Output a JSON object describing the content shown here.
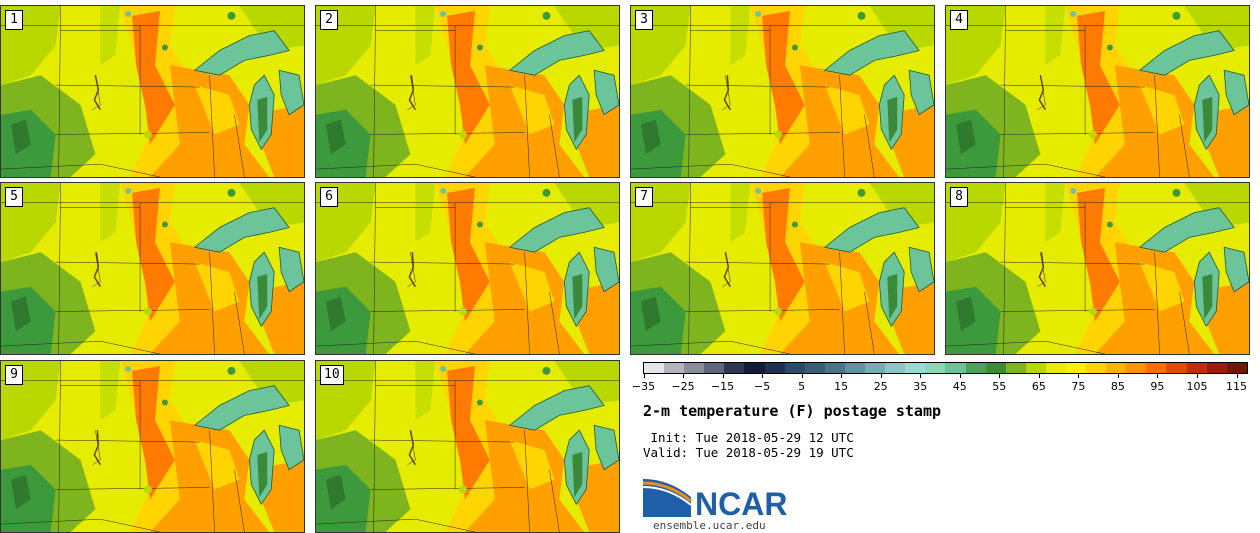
{
  "panels": [
    {
      "label": "1"
    },
    {
      "label": "2"
    },
    {
      "label": "3"
    },
    {
      "label": "4"
    },
    {
      "label": "5"
    },
    {
      "label": "6"
    },
    {
      "label": "7"
    },
    {
      "label": "8"
    },
    {
      "label": "9"
    },
    {
      "label": "10"
    }
  ],
  "colorbar": {
    "colors": [
      "#e6e6ea",
      "#b4b4c0",
      "#8a8e9c",
      "#5e667c",
      "#2e3650",
      "#121c36",
      "#1e3250",
      "#2e4a66",
      "#3c5e78",
      "#4e7488",
      "#62909e",
      "#78aab2",
      "#8cc6c4",
      "#96dcd2",
      "#8cd8b4",
      "#6cc496",
      "#4ea05a",
      "#3c8c32",
      "#7eb41e",
      "#b8d800",
      "#e6ec00",
      "#fff000",
      "#ffd400",
      "#ffb400",
      "#ff9400",
      "#ff6e00",
      "#e44a00",
      "#c02c10",
      "#9c1c10",
      "#701808"
    ],
    "range": [
      -35,
      115
    ],
    "tick_labels": [
      "−35",
      "−25",
      "−15",
      "−5",
      "5",
      "15",
      "25",
      "35",
      "45",
      "55",
      "65",
      "75",
      "85",
      "95",
      "105",
      "115"
    ]
  },
  "title": "2-m temperature (F) postage stamp",
  "init_line": " Init: Tue 2018-05-29 12 UTC",
  "valid_line": "Valid: Tue 2018-05-29 19 UTC",
  "logo": {
    "text": "NCAR",
    "url": "ensemble.ucar.edu",
    "brand_color": "#1f5fa8"
  },
  "map_colors": {
    "cool_green": "#3c9a3c",
    "green": "#7eb41e",
    "lime": "#b8d800",
    "yellow": "#e6ec00",
    "gold": "#ffd400",
    "orange": "#ffa000",
    "deep_orange": "#ff7a00",
    "lake": "#6cc49a",
    "lake_edge": "#1e5a3c"
  }
}
